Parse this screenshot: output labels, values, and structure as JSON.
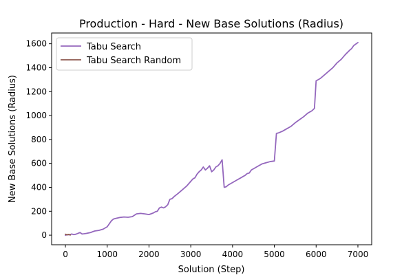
{
  "chart_data": {
    "type": "line",
    "title": "Production - Hard - New Base Solutions (Radius)",
    "xlabel": "Solution (Step)",
    "ylabel": "New Base Solutions (Radius)",
    "xlim": [
      -330,
      7330
    ],
    "ylim": [
      -80,
      1690
    ],
    "xticks": [
      0,
      1000,
      2000,
      3000,
      4000,
      5000,
      6000,
      7000
    ],
    "yticks": [
      0,
      200,
      400,
      600,
      800,
      1000,
      1200,
      1400,
      1600
    ],
    "grid": false,
    "legend_position": "top-left",
    "series": [
      {
        "name": "Tabu Search",
        "color": "#9467bd",
        "x": [
          0,
          50,
          100,
          150,
          200,
          250,
          300,
          350,
          400,
          450,
          500,
          600,
          700,
          800,
          900,
          1000,
          1100,
          1150,
          1200,
          1300,
          1400,
          1500,
          1600,
          1700,
          1750,
          1800,
          1900,
          2000,
          2100,
          2150,
          2200,
          2250,
          2300,
          2350,
          2400,
          2450,
          2500,
          2550,
          2600,
          2700,
          2800,
          2900,
          3000,
          3050,
          3100,
          3150,
          3200,
          3250,
          3300,
          3350,
          3400,
          3450,
          3500,
          3550,
          3600,
          3650,
          3700,
          3750,
          3800,
          3850,
          3900,
          4000,
          4100,
          4200,
          4300,
          4350,
          4400,
          4450,
          4500,
          4600,
          4700,
          4800,
          4900,
          5000,
          5050,
          5100,
          5200,
          5300,
          5400,
          5500,
          5600,
          5700,
          5800,
          5900,
          5960,
          6000,
          6100,
          6200,
          6300,
          6400,
          6500,
          6600,
          6700,
          6800,
          6850,
          6900,
          7000
        ],
        "y": [
          0,
          5,
          3,
          10,
          5,
          8,
          15,
          22,
          10,
          12,
          15,
          22,
          35,
          40,
          50,
          70,
          120,
          135,
          140,
          148,
          152,
          150,
          155,
          178,
          180,
          182,
          178,
          172,
          185,
          195,
          200,
          228,
          235,
          228,
          238,
          255,
          300,
          305,
          322,
          350,
          380,
          410,
          450,
          470,
          480,
          510,
          530,
          545,
          570,
          545,
          560,
          580,
          530,
          545,
          570,
          580,
          600,
          630,
          400,
          405,
          420,
          440,
          460,
          480,
          500,
          515,
          520,
          545,
          555,
          575,
          595,
          605,
          615,
          620,
          850,
          855,
          870,
          890,
          910,
          940,
          965,
          990,
          1020,
          1040,
          1060,
          1290,
          1310,
          1340,
          1370,
          1400,
          1440,
          1470,
          1510,
          1545,
          1560,
          1585,
          1610
        ]
      },
      {
        "name": "Tabu Search Random",
        "color": "#8c564b",
        "x": [
          0,
          40,
          80,
          120
        ],
        "y": [
          8,
          3,
          6,
          2
        ]
      }
    ]
  }
}
